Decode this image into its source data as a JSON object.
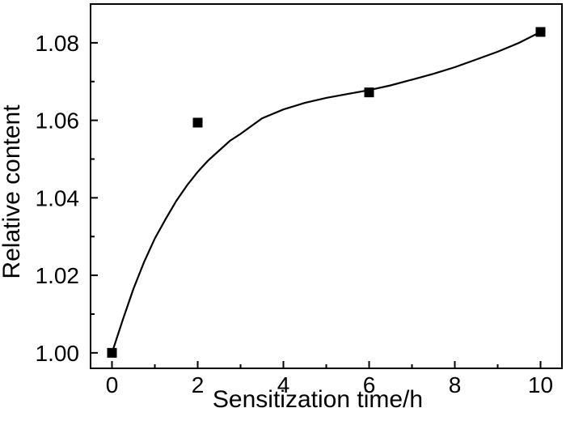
{
  "chart_data": {
    "type": "scatter",
    "xlabel": "Sensitization time/h",
    "ylabel": "Relative content",
    "xlim": [
      -0.5,
      10.5
    ],
    "ylim": [
      0.996,
      1.09
    ],
    "x_ticks": [
      "0",
      "2",
      "4",
      "6",
      "8",
      "10"
    ],
    "y_ticks": [
      "1.00",
      "1.02",
      "1.04",
      "1.06",
      "1.08"
    ],
    "grid": false,
    "series": [
      {
        "marker": "square",
        "color": "#000000",
        "x": [
          0,
          2,
          6,
          10
        ],
        "y": [
          1.0,
          1.0594,
          1.0672,
          1.0828
        ]
      }
    ],
    "fit_curve": {
      "color": "#000000",
      "x": [
        0,
        0.25,
        0.5,
        0.75,
        1,
        1.25,
        1.5,
        1.75,
        2,
        2.25,
        2.5,
        2.75,
        3,
        3.5,
        4,
        4.5,
        5,
        5.5,
        6,
        6.5,
        7,
        7.5,
        8,
        8.5,
        9,
        9.5,
        10
      ],
      "y": [
        1.0,
        1.0085,
        1.0165,
        1.0235,
        1.0295,
        1.0345,
        1.0392,
        1.0432,
        1.0467,
        1.0497,
        1.0522,
        1.0547,
        1.0565,
        1.0605,
        1.0628,
        1.0645,
        1.0658,
        1.0668,
        1.0678,
        1.069,
        1.0705,
        1.072,
        1.0737,
        1.0757,
        1.0777,
        1.08,
        1.0828
      ]
    }
  }
}
